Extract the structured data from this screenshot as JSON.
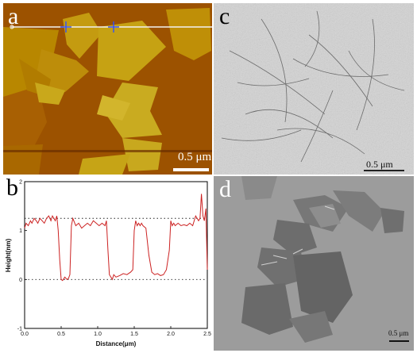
{
  "panels": {
    "a": {
      "letter": "a",
      "scale_bar": "0.5 μm"
    },
    "b": {
      "letter": "b"
    },
    "c": {
      "letter": "c",
      "scale_bar": "0.5 μm"
    },
    "d": {
      "letter": "d",
      "scale_bar": "0.5 μm"
    }
  },
  "chart_data": {
    "type": "line",
    "xlabel": "Distance(μm)",
    "ylabel": "Height(nm)",
    "xlim": [
      0.0,
      2.5
    ],
    "ylim": [
      -1,
      2
    ],
    "xticks": [
      "0.0",
      "0.5",
      "1.0",
      "1.5",
      "2.0",
      "2.5"
    ],
    "yticks": [
      "-1",
      "0",
      "1",
      "2"
    ],
    "reference_lines": [
      1.25,
      0
    ],
    "series": [
      {
        "color": "#cc2222",
        "x": [
          0.0,
          0.02,
          0.05,
          0.08,
          0.1,
          0.13,
          0.16,
          0.18,
          0.21,
          0.24,
          0.27,
          0.3,
          0.33,
          0.36,
          0.38,
          0.4,
          0.42,
          0.44,
          0.46,
          0.48,
          0.5,
          0.52,
          0.55,
          0.58,
          0.6,
          0.62,
          0.64,
          0.66,
          0.7,
          0.74,
          0.78,
          0.82,
          0.86,
          0.9,
          0.94,
          0.98,
          1.02,
          1.06,
          1.1,
          1.12,
          1.14,
          1.16,
          1.18,
          1.2,
          1.22,
          1.25,
          1.3,
          1.35,
          1.4,
          1.45,
          1.48,
          1.5,
          1.52,
          1.54,
          1.56,
          1.58,
          1.6,
          1.62,
          1.66,
          1.7,
          1.74,
          1.78,
          1.82,
          1.86,
          1.9,
          1.94,
          1.98,
          2.0,
          2.02,
          2.04,
          2.06,
          2.1,
          2.14,
          2.18,
          2.22,
          2.26,
          2.3,
          2.34,
          2.38,
          2.4,
          2.42,
          2.44,
          2.46,
          2.48,
          2.5
        ],
        "y": [
          1.05,
          1.15,
          1.1,
          1.2,
          1.15,
          1.25,
          1.2,
          1.15,
          1.25,
          1.2,
          1.15,
          1.25,
          1.3,
          1.2,
          1.3,
          1.25,
          1.2,
          1.3,
          1.0,
          0.4,
          0.0,
          -0.02,
          0.05,
          0.0,
          0.02,
          0.1,
          1.1,
          1.25,
          1.1,
          1.15,
          1.05,
          1.1,
          1.15,
          1.1,
          1.2,
          1.15,
          1.1,
          1.15,
          1.1,
          1.2,
          0.6,
          0.1,
          0.05,
          0.0,
          0.1,
          0.05,
          0.08,
          0.12,
          0.1,
          0.15,
          0.2,
          1.0,
          1.2,
          1.1,
          1.15,
          1.1,
          1.15,
          1.1,
          1.05,
          0.5,
          0.15,
          0.1,
          0.12,
          0.08,
          0.1,
          0.2,
          0.6,
          1.2,
          1.1,
          1.15,
          1.1,
          1.15,
          1.1,
          1.12,
          1.1,
          1.15,
          1.1,
          1.3,
          1.2,
          1.25,
          1.75,
          1.3,
          1.2,
          1.45,
          0.2
        ]
      }
    ]
  }
}
